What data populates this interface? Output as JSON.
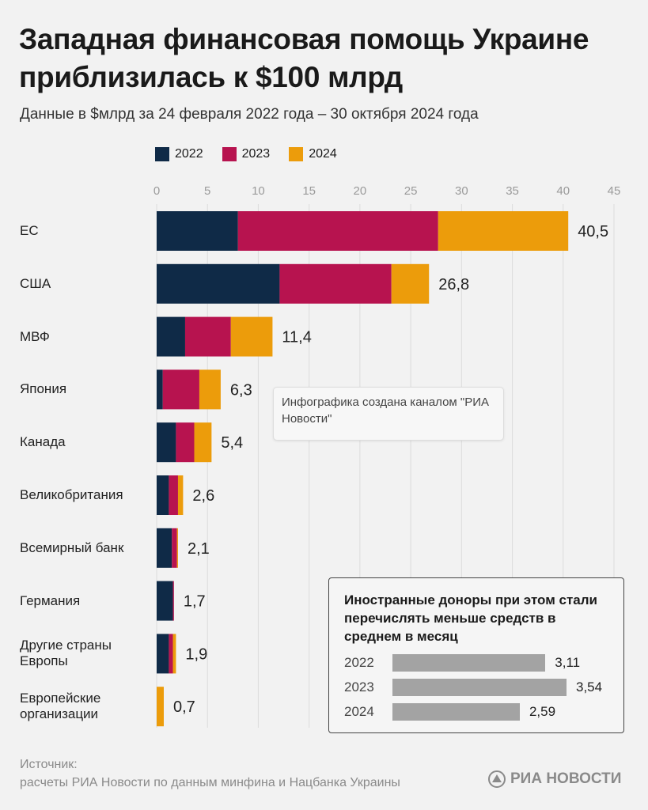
{
  "chart_data": {
    "type": "bar",
    "orientation": "horizontal",
    "stacked": true,
    "title": "Западная финансовая помощь Украине приблизилась к $100 млрд",
    "subtitle": "Данные в $млрд за 24 февраля 2022 года – 30 октября 2024 года",
    "categories": [
      "ЕС",
      "США",
      "МВФ",
      "Япония",
      "Канада",
      "Великобритания",
      "Всемирный банк",
      "Германия",
      "Другие страны Европы",
      "Европейские организации"
    ],
    "series": [
      {
        "name": "2022",
        "color": "#0f2a47",
        "values": [
          8.0,
          12.1,
          2.8,
          0.6,
          1.9,
          1.2,
          1.5,
          1.6,
          1.2,
          0
        ]
      },
      {
        "name": "2023",
        "color": "#b7134f",
        "values": [
          19.7,
          11.0,
          4.5,
          3.6,
          1.8,
          0.9,
          0.5,
          0.1,
          0.4,
          0
        ]
      },
      {
        "name": "2024",
        "color": "#ec9c0b",
        "values": [
          12.8,
          3.7,
          4.1,
          2.1,
          1.7,
          0.5,
          0.1,
          0,
          0.3,
          0.7
        ]
      }
    ],
    "totals": [
      "40,5",
      "26,8",
      "11,4",
      "6,3",
      "5,4",
      "2,6",
      "2,1",
      "1,7",
      "1,9",
      "0,7"
    ],
    "xlim": [
      0,
      45
    ],
    "xticks": [
      "0",
      "5",
      "10",
      "15",
      "20",
      "25",
      "30",
      "35",
      "40",
      "45"
    ],
    "grid": true,
    "legend_position": "top"
  },
  "note": "Инфографика создана каналом \"РИА Новости\"",
  "inset": {
    "type": "bar",
    "title": "Иностранные доноры при этом стали перечислять меньше средств в среднем в месяц",
    "categories": [
      "2022",
      "2023",
      "2024"
    ],
    "values": [
      3.11,
      3.54,
      2.59
    ],
    "labels": [
      "3,11",
      "3,54",
      "2,59"
    ],
    "color": "#a3a3a3"
  },
  "source": {
    "line1": "Источник:",
    "line2": "расчеты РИА Новости по данным минфина и Нацбанка Украины"
  },
  "logo": "РИА НОВОСТИ"
}
